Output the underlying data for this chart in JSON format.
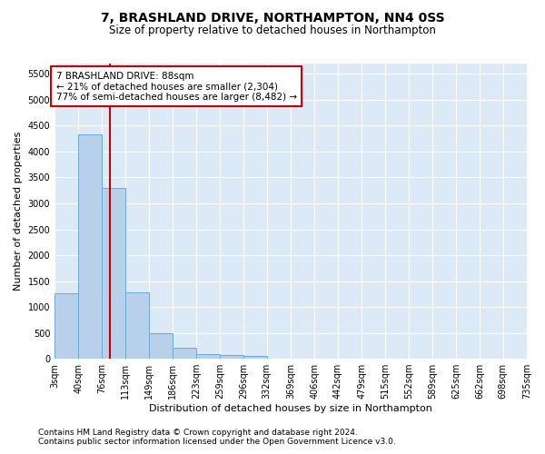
{
  "title": "7, BRASHLAND DRIVE, NORTHAMPTON, NN4 0SS",
  "subtitle": "Size of property relative to detached houses in Northampton",
  "xlabel": "Distribution of detached houses by size in Northampton",
  "ylabel": "Number of detached properties",
  "footnote1": "Contains HM Land Registry data © Crown copyright and database right 2024.",
  "footnote2": "Contains public sector information licensed under the Open Government Licence v3.0.",
  "bar_color": "#b8d0ea",
  "bar_edge_color": "#6aaad4",
  "background_color": "#dce9f7",
  "grid_color": "#ffffff",
  "vline_color": "#cc0000",
  "vline_x": 88,
  "annotation_text": "7 BRASHLAND DRIVE: 88sqm\n← 21% of detached houses are smaller (2,304)\n77% of semi-detached houses are larger (8,482) →",
  "annotation_box_color": "#ffffff",
  "annotation_box_edge": "#cc0000",
  "bin_edges": [
    3,
    40,
    76,
    113,
    149,
    186,
    223,
    259,
    296,
    332,
    369,
    406,
    442,
    479,
    515,
    552,
    589,
    625,
    662,
    698,
    735
  ],
  "bar_heights": [
    1270,
    4330,
    3300,
    1290,
    490,
    220,
    90,
    70,
    60,
    0,
    0,
    0,
    0,
    0,
    0,
    0,
    0,
    0,
    0,
    0
  ],
  "ylim": [
    0,
    5700
  ],
  "yticks": [
    0,
    500,
    1000,
    1500,
    2000,
    2500,
    3000,
    3500,
    4000,
    4500,
    5000,
    5500
  ],
  "title_fontsize": 10,
  "subtitle_fontsize": 8.5,
  "xlabel_fontsize": 8,
  "ylabel_fontsize": 8,
  "tick_fontsize": 7,
  "footnote_fontsize": 6.5,
  "ann_fontsize": 7.5
}
